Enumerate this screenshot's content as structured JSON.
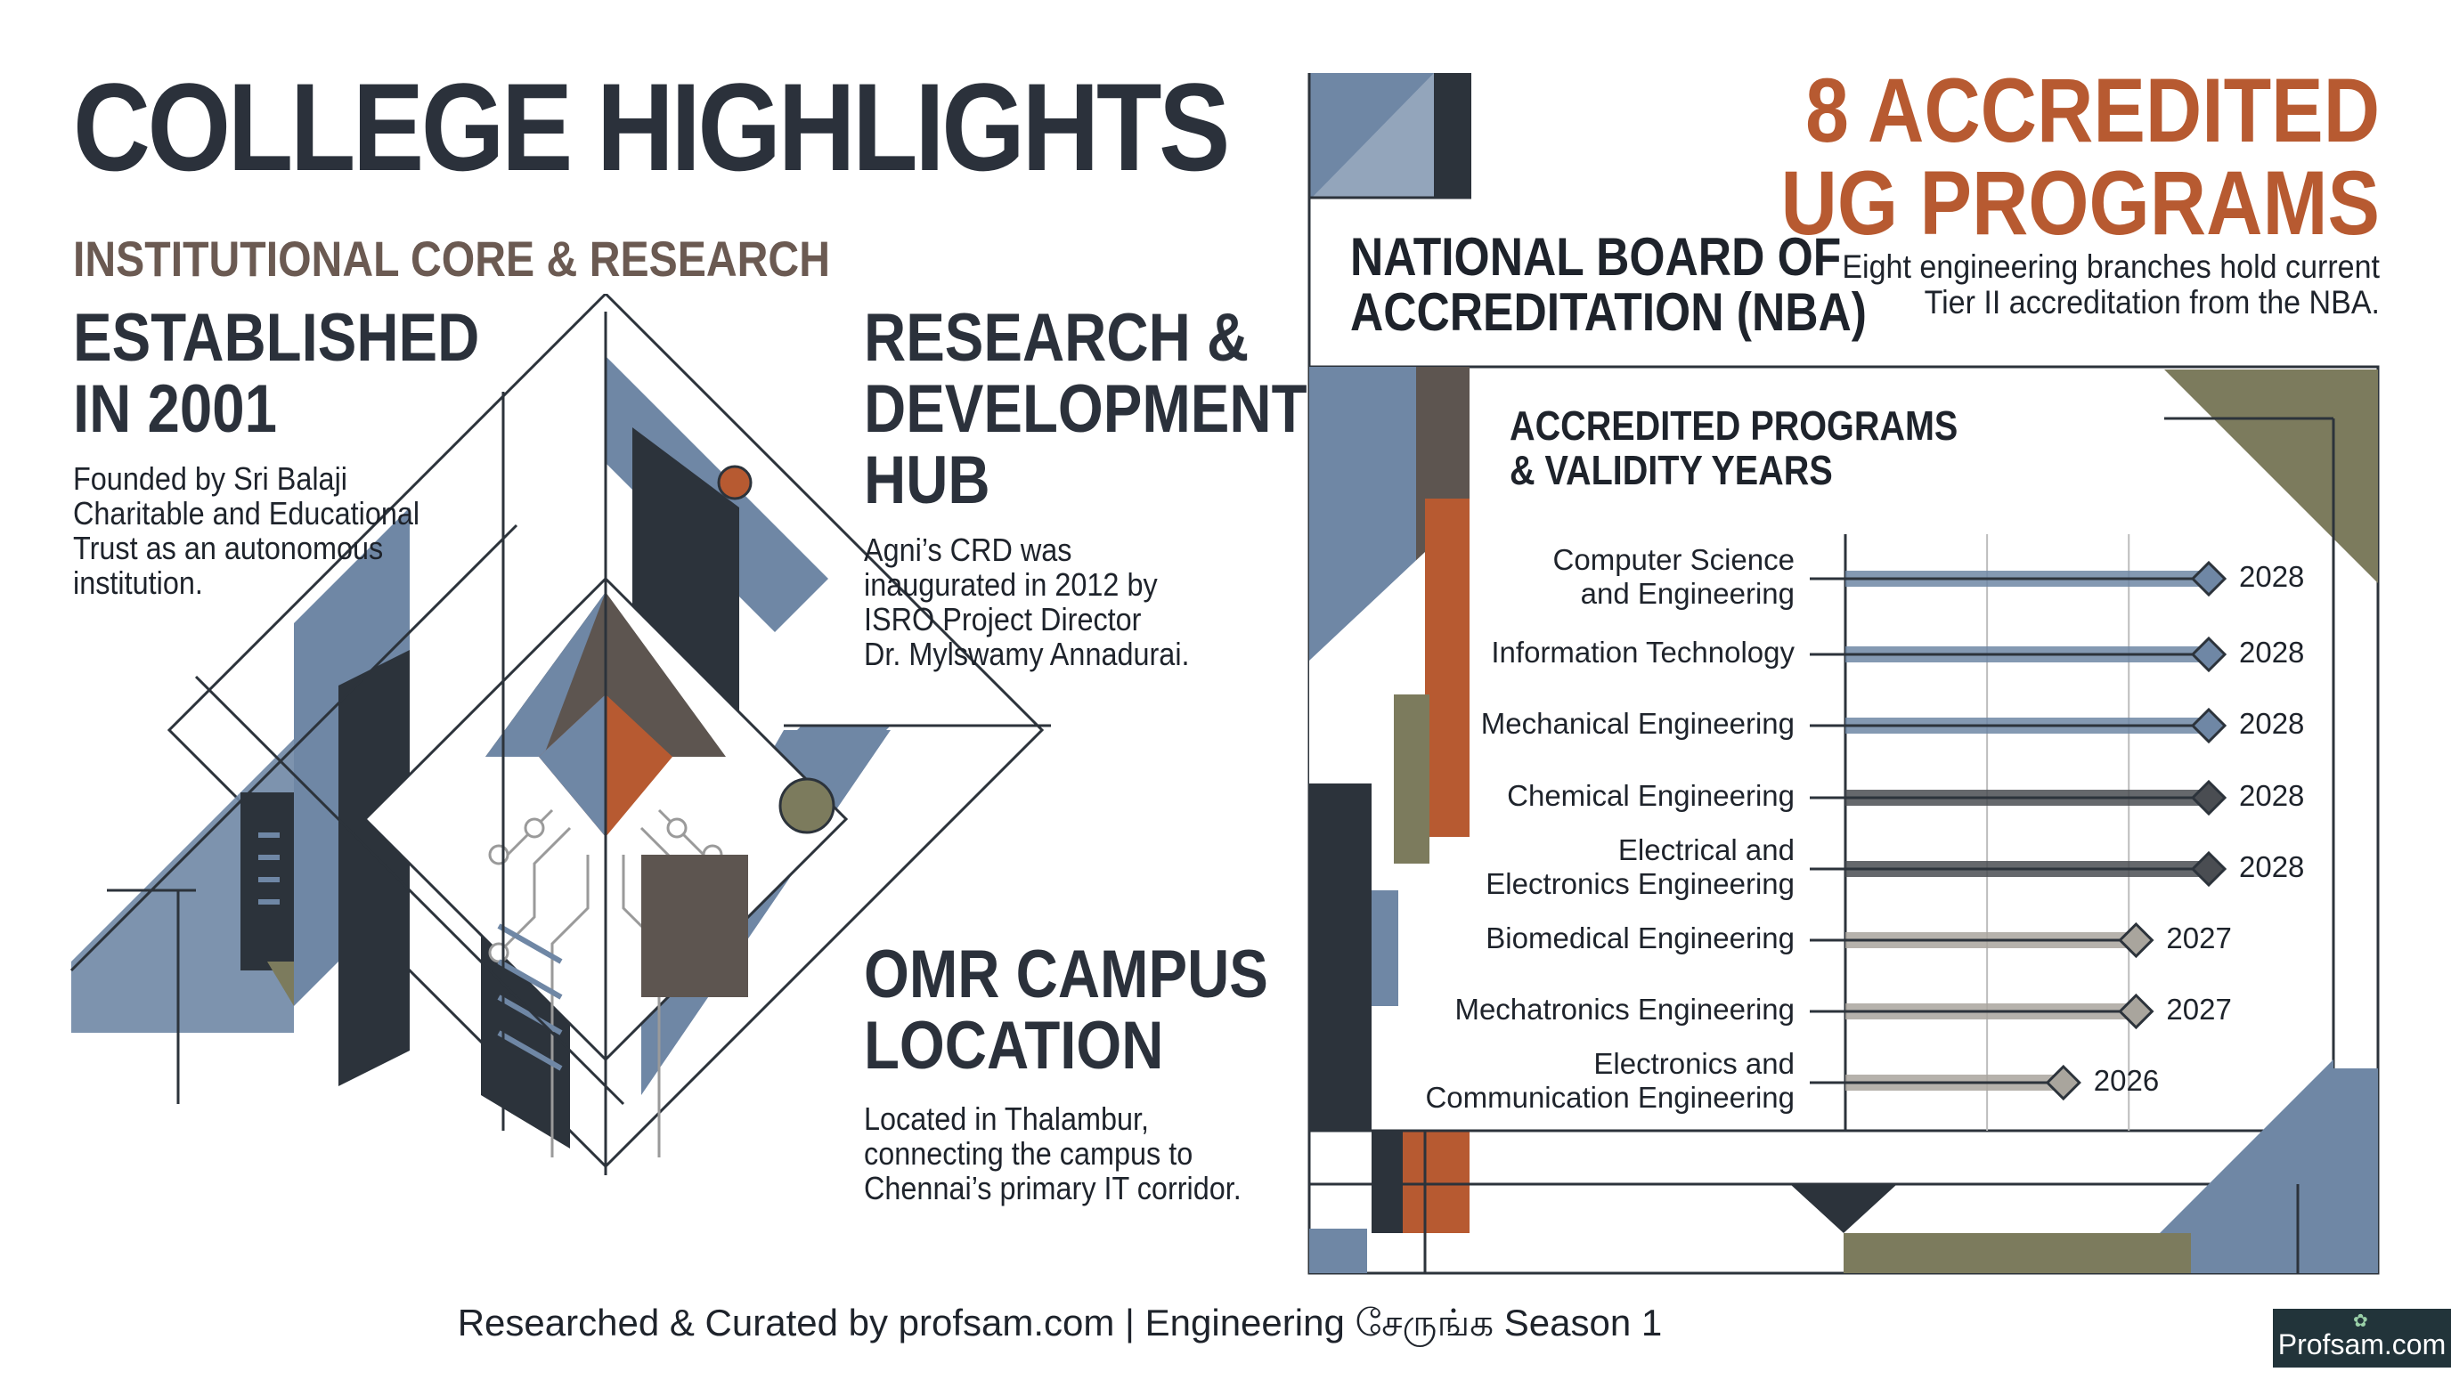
{
  "header": {
    "title": "COLLEGE HIGHLIGHTS",
    "subtitle": "INSTITUTIONAL CORE & RESEARCH"
  },
  "established": {
    "heading": "ESTABLISHED\nIN 2001",
    "text": "Founded by Sri Balaji\nCharitable and Educational\nTrust as an autonomous\ninstitution."
  },
  "research": {
    "heading": "RESEARCH &\nDEVELOPMENT\nHUB",
    "text": "Agni’s CRD was\ninaugurated in 2012 by\nISRO Project Director\nDr. Mylswamy Annadurai."
  },
  "campus": {
    "heading": "OMR CAMPUS\nLOCATION",
    "text": "Located in Thalambur,\nconnecting the campus to\nChennai’s primary IT corridor."
  },
  "nba": {
    "title": "NATIONAL BOARD OF\nACCREDITATION (NBA)"
  },
  "programs_callout": {
    "title": "8 ACCREDITED\nUG PROGRAMS",
    "text": "Eight engineering branches hold current\nTier II accreditation from the NBA."
  },
  "chart_data": {
    "type": "bar",
    "title": "ACCREDITED PROGRAMS\n& VALIDITY YEARS",
    "orientation": "horizontal",
    "categories": [
      "Computer Science\nand Engineering",
      "Information Technology",
      "Mechanical Engineering",
      "Chemical Engineering",
      "Electrical and\nElectronics Engineering",
      "Biomedical Engineering",
      "Mechatronics Engineering",
      "Electronics and\nCommunication Engineering"
    ],
    "values": [
      2028,
      2028,
      2028,
      2028,
      2028,
      2027,
      2027,
      2026
    ],
    "value_labels": [
      "2028",
      "2028",
      "2028",
      "2028",
      "2028",
      "2027",
      "2027",
      "2026"
    ],
    "xlim": [
      2023,
      2028
    ],
    "grid": true,
    "colors": [
      "#6f87a5",
      "#6f87a5",
      "#6f87a5",
      "#4a4d52",
      "#4a4d52",
      "#a9a59d",
      "#a9a59d",
      "#a9a59d"
    ]
  },
  "footer": {
    "credit": "Researched & Curated by profsam.com | Engineering சேருங்க Season 1",
    "badge": "Profsam.com",
    "badge_icon": "leaf-icon"
  },
  "palette": {
    "slate_blue": "#6f87a5",
    "charcoal": "#2c333b",
    "rust": "#b75a31",
    "olive": "#7c7b5d",
    "brown": "#5d5550"
  }
}
